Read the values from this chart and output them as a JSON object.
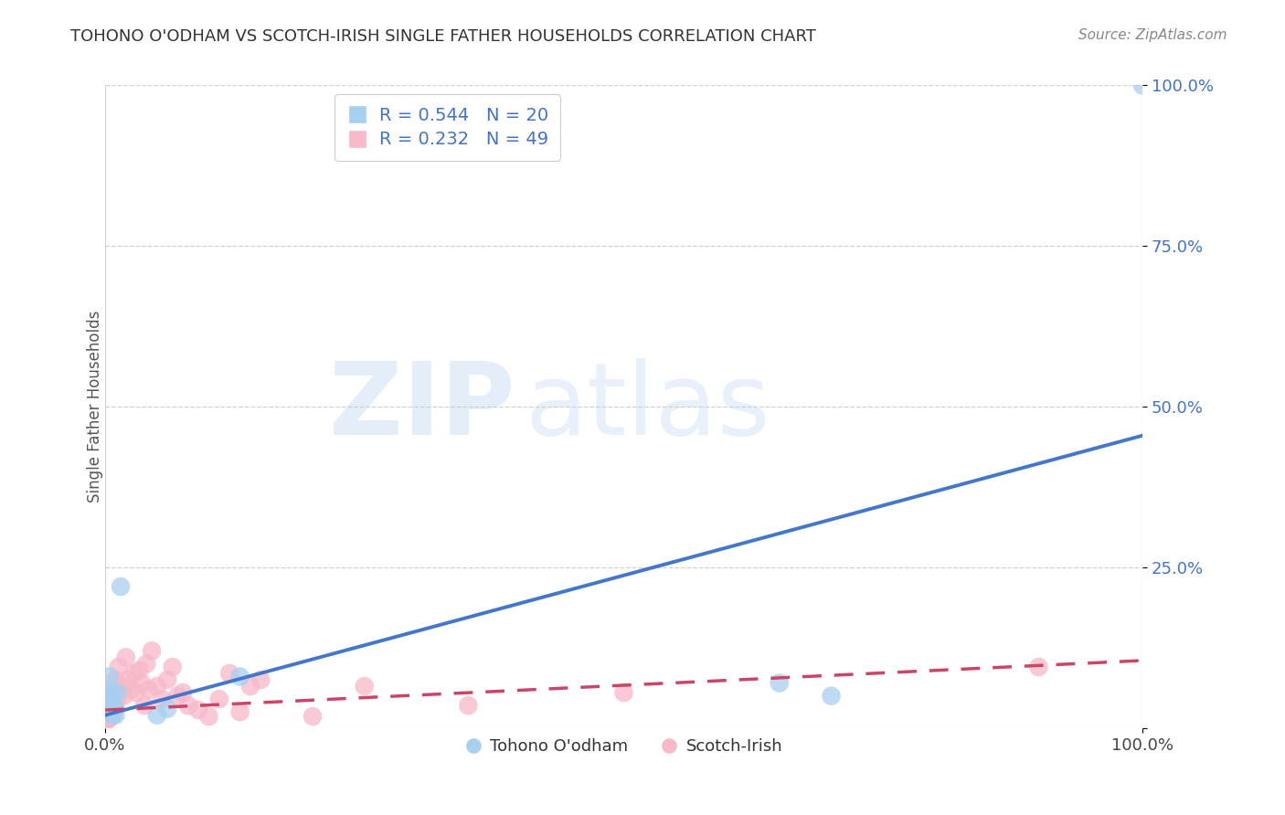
{
  "title": "TOHONO O'ODHAM VS SCOTCH-IRISH SINGLE FATHER HOUSEHOLDS CORRELATION CHART",
  "source": "Source: ZipAtlas.com",
  "ylabel": "Single Father Households",
  "legend_label1": "Tohono O'odham",
  "legend_label2": "Scotch-Irish",
  "R_blue": 0.544,
  "N_blue": 20,
  "R_pink": 0.232,
  "N_pink": 49,
  "blue_color": "#a8cff0",
  "pink_color": "#f7b8c8",
  "blue_line_color": "#4477cc",
  "pink_line_color": "#cc4466",
  "background_color": "#ffffff",
  "grid_color": "#cccccc",
  "title_color": "#333333",
  "watermark_zip_color": "#d0e4f7",
  "watermark_atlas_color": "#d0e4f7",
  "tohono_x": [
    0.001,
    0.002,
    0.002,
    0.003,
    0.004,
    0.005,
    0.006,
    0.007,
    0.008,
    0.01,
    0.012,
    0.015,
    0.05,
    0.06,
    0.13,
    0.65,
    0.7,
    1.0,
    0.003,
    0.009
  ],
  "tohono_y": [
    0.03,
    0.05,
    0.06,
    0.025,
    0.08,
    0.055,
    0.045,
    0.02,
    0.035,
    0.02,
    0.055,
    0.22,
    0.02,
    0.03,
    0.08,
    0.07,
    0.05,
    1.0,
    0.035,
    0.03
  ],
  "scotch_x": [
    0.001,
    0.002,
    0.003,
    0.003,
    0.004,
    0.004,
    0.005,
    0.005,
    0.006,
    0.006,
    0.007,
    0.008,
    0.009,
    0.01,
    0.01,
    0.012,
    0.013,
    0.015,
    0.018,
    0.02,
    0.022,
    0.025,
    0.028,
    0.03,
    0.033,
    0.035,
    0.038,
    0.04,
    0.042,
    0.045,
    0.05,
    0.055,
    0.06,
    0.065,
    0.07,
    0.075,
    0.08,
    0.09,
    0.1,
    0.11,
    0.12,
    0.13,
    0.14,
    0.15,
    0.2,
    0.25,
    0.35,
    0.5,
    0.9
  ],
  "scotch_y": [
    0.01,
    0.02,
    0.015,
    0.025,
    0.015,
    0.03,
    0.02,
    0.04,
    0.025,
    0.05,
    0.02,
    0.055,
    0.035,
    0.03,
    0.075,
    0.045,
    0.095,
    0.065,
    0.05,
    0.11,
    0.075,
    0.06,
    0.085,
    0.055,
    0.09,
    0.07,
    0.035,
    0.1,
    0.06,
    0.12,
    0.065,
    0.045,
    0.075,
    0.095,
    0.05,
    0.055,
    0.035,
    0.028,
    0.018,
    0.045,
    0.085,
    0.025,
    0.065,
    0.075,
    0.018,
    0.065,
    0.035,
    0.055,
    0.095
  ],
  "blue_line_x": [
    0.0,
    1.0
  ],
  "blue_line_y": [
    0.02,
    0.455
  ],
  "pink_line_x": [
    0.0,
    1.0
  ],
  "pink_line_y": [
    0.028,
    0.105
  ],
  "yticks": [
    0.0,
    0.25,
    0.5,
    0.75,
    1.0
  ],
  "ytick_labels": [
    "",
    "25.0%",
    "50.0%",
    "75.0%",
    "100.0%"
  ],
  "xtick_labels": [
    "0.0%",
    "100.0%"
  ],
  "xtick_values": [
    0.0,
    1.0
  ]
}
